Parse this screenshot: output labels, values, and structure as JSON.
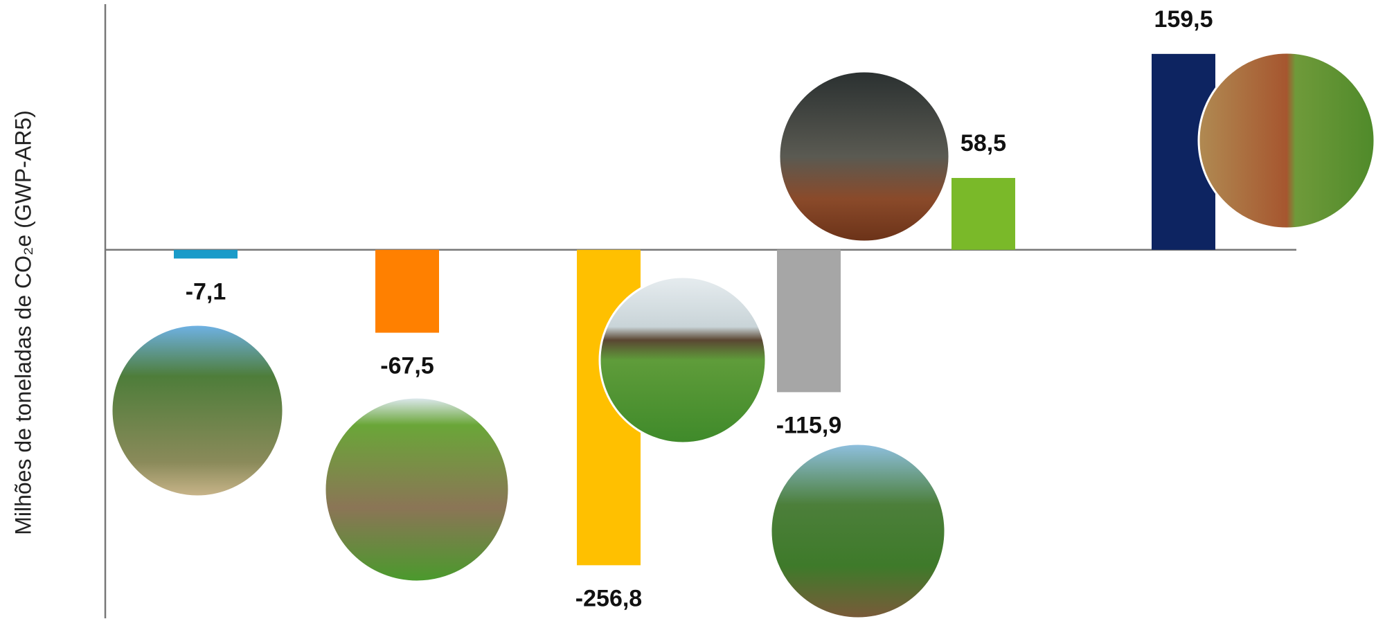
{
  "chart_data": {
    "type": "bar",
    "y_label": "Milhões de toneladas de CO₂e (GWP-AR5)",
    "categories": [
      null,
      null,
      null,
      null,
      null,
      null
    ],
    "values": [
      -7.1,
      -67.5,
      -256.8,
      -115.9,
      58.5,
      159.5
    ],
    "value_labels": [
      "-7,1",
      "-67,5",
      "-256,8",
      "-115,9",
      "58,5",
      "159,5"
    ],
    "colors": [
      "#1a9bc9",
      "#ff8000",
      "#ffc000",
      "#a6a6a6",
      "#7ab929",
      "#0d2461"
    ],
    "ylim": [
      -300,
      200
    ]
  }
}
